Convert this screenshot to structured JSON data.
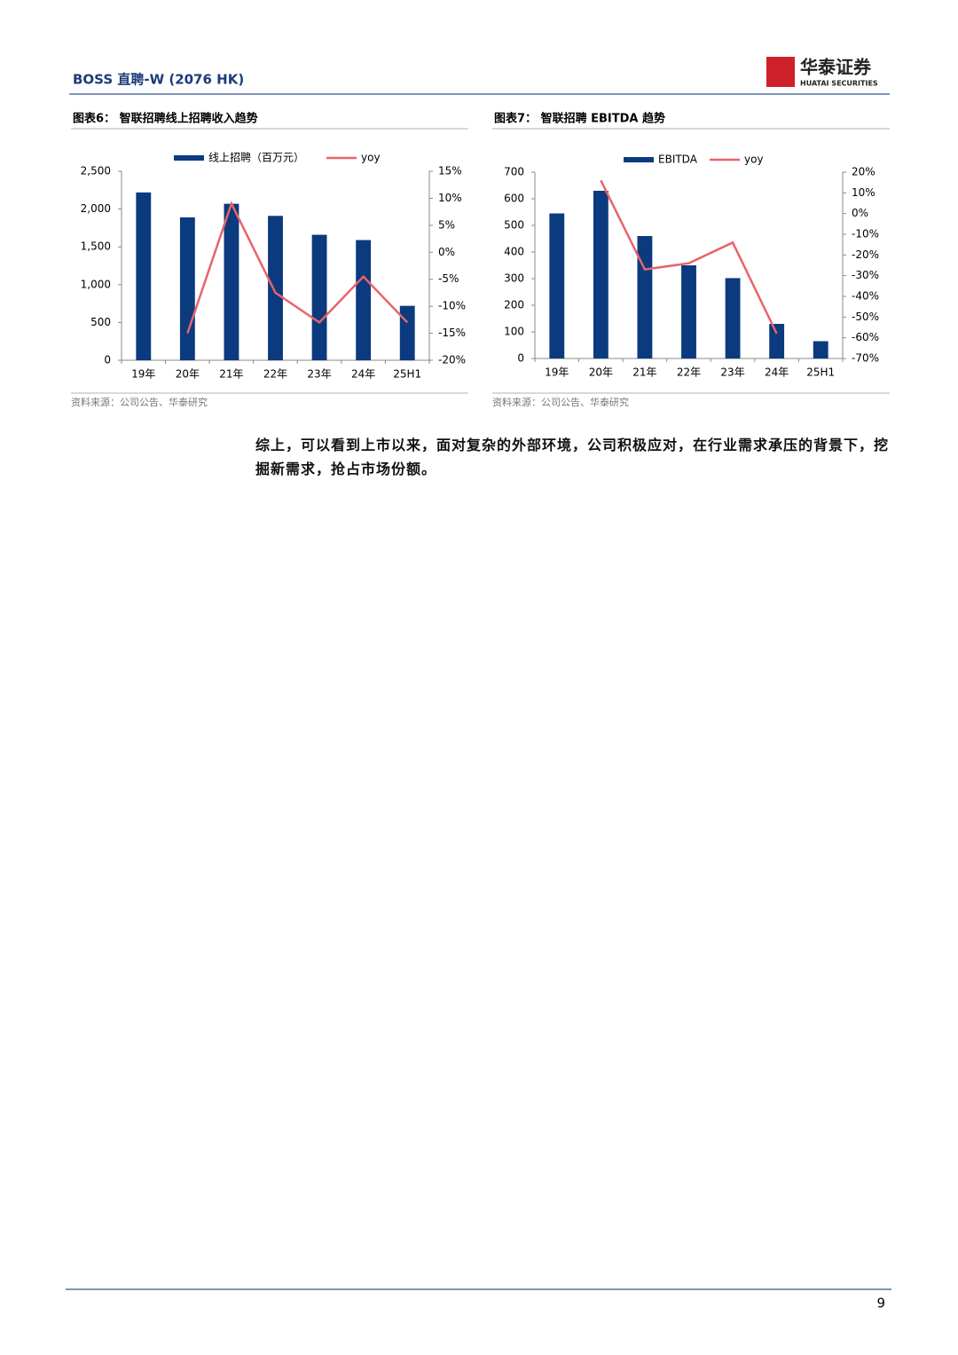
{
  "header": {
    "title": "BOSS 直聘-W (2076 HK)",
    "logo_cn": "华泰证券",
    "logo_en": "HUATAI SECURITIES"
  },
  "chart_data": [
    {
      "type": "bar_line",
      "title": "图表6：  智联招聘线上招聘收入趋势",
      "categories": [
        "19年",
        "20年",
        "21年",
        "22年",
        "23年",
        "24年",
        "25H1"
      ],
      "series": [
        {
          "name": "线上招聘（百万元）",
          "color": "#0b3a7e",
          "type": "bar",
          "values": [
            2220,
            1890,
            2070,
            1910,
            1660,
            1590,
            720
          ]
        },
        {
          "name": "yoy",
          "color": "#e8636a",
          "type": "line",
          "axis": "y2",
          "values": [
            null,
            -15,
            9,
            -7.5,
            -13,
            -4.5,
            -13
          ]
        }
      ],
      "ylim": [
        0,
        2500
      ],
      "yticks": [
        0,
        500,
        {
          "value": 1000,
          "label": "1,000"
        },
        {
          "value": 1500,
          "label": "1,500"
        },
        {
          "value": 2000,
          "label": "2,000"
        },
        {
          "value": 2500,
          "label": "2,500"
        }
      ],
      "y2lim": [
        -20,
        15
      ],
      "y2ticks": [
        {
          "value": -20,
          "label": "-20%"
        },
        {
          "value": -15,
          "label": "-15%"
        },
        {
          "value": -10,
          "label": "-10%"
        },
        {
          "value": -5,
          "label": "-5%"
        },
        {
          "value": 0,
          "label": "0%"
        },
        {
          "value": 5,
          "label": "5%"
        },
        {
          "value": 10,
          "label": "10%"
        },
        {
          "value": 15,
          "label": "15%"
        }
      ],
      "legend": "top",
      "grid": false,
      "source": "资料来源：公司公告、华泰研究"
    },
    {
      "type": "bar_line",
      "title": "图表7：  智联招聘 EBITDA 趋势",
      "categories": [
        "19年",
        "20年",
        "21年",
        "22年",
        "23年",
        "24年",
        "25H1"
      ],
      "series": [
        {
          "name": "EBITDA",
          "color": "#0b3a7e",
          "type": "bar",
          "values": [
            545,
            630,
            460,
            350,
            302,
            130,
            65
          ]
        },
        {
          "name": "yoy",
          "color": "#e8636a",
          "type": "line",
          "axis": "y2",
          "values": [
            null,
            16,
            -27,
            -24,
            -14,
            -58,
            null
          ]
        }
      ],
      "ylim": [
        0,
        700
      ],
      "yticks": [
        0,
        100,
        200,
        300,
        400,
        500,
        600,
        700
      ],
      "y2lim": [
        -70,
        20
      ],
      "y2ticks": [
        {
          "value": -70,
          "label": "-70%"
        },
        {
          "value": -60,
          "label": "-60%"
        },
        {
          "value": -50,
          "label": "-50%"
        },
        {
          "value": -40,
          "label": "-40%"
        },
        {
          "value": -30,
          "label": "-30%"
        },
        {
          "value": -20,
          "label": "-20%"
        },
        {
          "value": -10,
          "label": "-10%"
        },
        {
          "value": 0,
          "label": "0%"
        },
        {
          "value": 10,
          "label": "10%"
        },
        {
          "value": 20,
          "label": "20%"
        }
      ],
      "legend": "top",
      "grid": false,
      "source": "资料来源：公司公告、华泰研究"
    }
  ],
  "body": "综上，可以看到上市以来，面对复杂的外部环境，公司积极应对，在行业需求承压的背景下，挖掘新需求，抢占市场份额。",
  "page_number": "9"
}
